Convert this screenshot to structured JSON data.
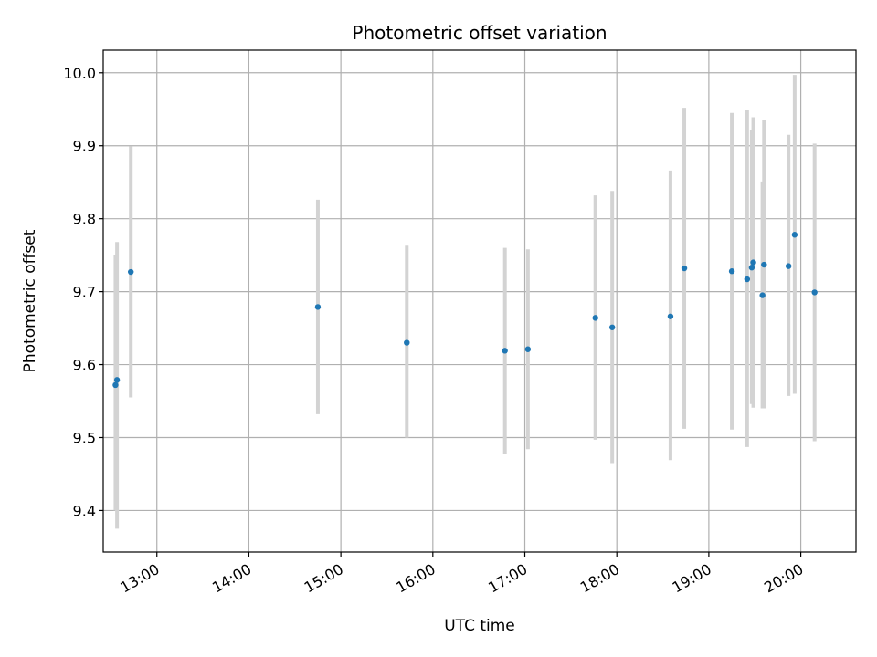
{
  "chart_data": {
    "type": "scatter",
    "title": "Photometric offset variation",
    "xlabel": "UTC time",
    "ylabel": "Photometric offset",
    "x_tick_labels": [
      "13:00",
      "14:00",
      "15:00",
      "16:00",
      "17:00",
      "18:00",
      "19:00",
      "20:00"
    ],
    "y_tick_labels": [
      "9.4",
      "9.5",
      "9.6",
      "9.7",
      "9.8",
      "9.9",
      "10.0"
    ],
    "xlim": [
      "12:25",
      "20:36"
    ],
    "ylim": [
      9.343,
      10.031
    ],
    "grid": true,
    "colors": {
      "marker": "#1f77b4",
      "errorbar": "#d3d3d3",
      "grid": "#b0b0b0"
    },
    "points": [
      {
        "x": "12:33",
        "y": 9.572,
        "err_low": 9.4,
        "err_high": 9.75
      },
      {
        "x": "12:34",
        "y": 9.579,
        "err_low": 9.375,
        "err_high": 9.768
      },
      {
        "x": "12:43",
        "y": 9.727,
        "err_low": 9.555,
        "err_high": 9.899
      },
      {
        "x": "14:45",
        "y": 9.679,
        "err_low": 9.532,
        "err_high": 9.826
      },
      {
        "x": "15:43",
        "y": 9.63,
        "err_low": 9.5,
        "err_high": 9.763
      },
      {
        "x": "16:47",
        "y": 9.619,
        "err_low": 9.478,
        "err_high": 9.76
      },
      {
        "x": "17:02",
        "y": 9.621,
        "err_low": 9.484,
        "err_high": 9.758
      },
      {
        "x": "17:46",
        "y": 9.664,
        "err_low": 9.497,
        "err_high": 9.832
      },
      {
        "x": "17:57",
        "y": 9.651,
        "err_low": 9.465,
        "err_high": 9.838
      },
      {
        "x": "18:35",
        "y": 9.666,
        "err_low": 9.469,
        "err_high": 9.866
      },
      {
        "x": "18:44",
        "y": 9.732,
        "err_low": 9.512,
        "err_high": 9.952
      },
      {
        "x": "19:15",
        "y": 9.728,
        "err_low": 9.511,
        "err_high": 9.945
      },
      {
        "x": "19:25",
        "y": 9.717,
        "err_low": 9.487,
        "err_high": 9.949
      },
      {
        "x": "19:28",
        "y": 9.733,
        "err_low": 9.546,
        "err_high": 9.921
      },
      {
        "x": "19:29",
        "y": 9.74,
        "err_low": 9.541,
        "err_high": 9.939
      },
      {
        "x": "19:35",
        "y": 9.695,
        "err_low": 9.54,
        "err_high": 9.851
      },
      {
        "x": "19:36",
        "y": 9.737,
        "err_low": 9.54,
        "err_high": 9.935
      },
      {
        "x": "19:52",
        "y": 9.735,
        "err_low": 9.557,
        "err_high": 9.915
      },
      {
        "x": "19:56",
        "y": 9.778,
        "err_low": 9.56,
        "err_high": 9.997
      },
      {
        "x": "20:09",
        "y": 9.699,
        "err_low": 9.495,
        "err_high": 9.903
      }
    ]
  }
}
